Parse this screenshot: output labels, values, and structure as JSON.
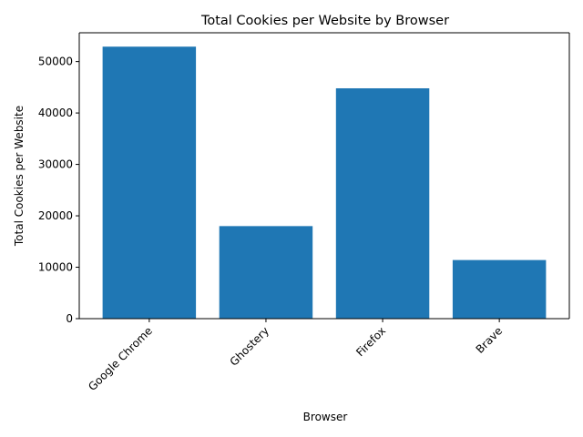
{
  "chart_data": {
    "type": "bar",
    "title": "Total Cookies per Website by Browser",
    "xlabel": "Browser",
    "ylabel": "Total Cookies per Website",
    "categories": [
      "Google Chrome",
      "Ghostery",
      "Firefox",
      "Brave"
    ],
    "values": [
      52900,
      18000,
      44800,
      11400
    ],
    "ylim": [
      0,
      55600
    ],
    "yticks": [
      0,
      10000,
      20000,
      30000,
      40000,
      50000
    ],
    "ytick_labels": [
      "0",
      "10000",
      "20000",
      "30000",
      "40000",
      "50000"
    ],
    "bar_color": "#1f77b4",
    "grid": false,
    "legend": false
  }
}
